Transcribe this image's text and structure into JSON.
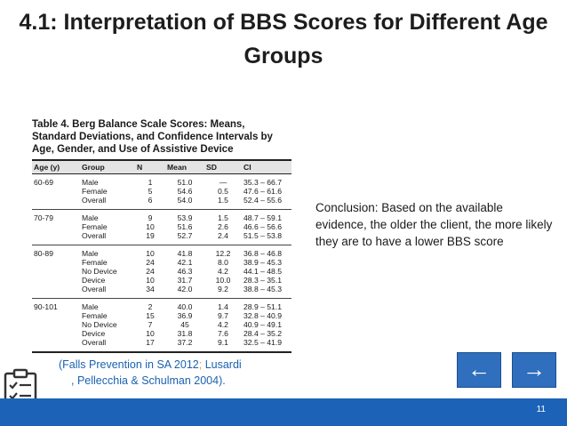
{
  "slide": {
    "title": "4.1: Interpretation of BBS Scores for Different Age Groups",
    "page_number": "11"
  },
  "table": {
    "caption": "Table 4. Berg Balance Scale Scores: Means, Standard Deviations, and Confidence Intervals by Age, Gender, and Use of Assistive Device",
    "headers": [
      "Age (y)",
      "Group",
      "N",
      "Mean",
      "SD",
      "CI"
    ],
    "rows": [
      [
        "60-69",
        "Male",
        "1",
        "51.0",
        "—",
        "35.3 – 66.7"
      ],
      [
        "",
        "Female",
        "5",
        "54.6",
        "0.5",
        "47.6 – 61.6"
      ],
      [
        "",
        "Overall",
        "6",
        "54.0",
        "1.5",
        "52.4 – 55.6"
      ],
      [
        "70-79",
        "Male",
        "9",
        "53.9",
        "1.5",
        "48.7 – 59.1"
      ],
      [
        "",
        "Female",
        "10",
        "51.6",
        "2.6",
        "46.6 – 56.6"
      ],
      [
        "",
        "Overall",
        "19",
        "52.7",
        "2.4",
        "51.5 – 53.8"
      ],
      [
        "80-89",
        "Male",
        "10",
        "41.8",
        "12.2",
        "36.8 – 46.8"
      ],
      [
        "",
        "Female",
        "24",
        "42.1",
        "8.0",
        "38.9 – 45.3"
      ],
      [
        "",
        "No Device",
        "24",
        "46.3",
        "4.2",
        "44.1 – 48.5"
      ],
      [
        "",
        "Device",
        "10",
        "31.7",
        "10.0",
        "28.3 – 35.1"
      ],
      [
        "",
        "Overall",
        "34",
        "42.0",
        "9.2",
        "38.8 – 45.3"
      ],
      [
        "90-101",
        "Male",
        "2",
        "40.0",
        "1.4",
        "28.9 – 51.1"
      ],
      [
        "",
        "Female",
        "15",
        "36.9",
        "9.7",
        "32.8 – 40.9"
      ],
      [
        "",
        "No Device",
        "7",
        "45",
        "4.2",
        "40.9 – 49.1"
      ],
      [
        "",
        "Device",
        "10",
        "31.8",
        "7.6",
        "28.4 – 35.2"
      ],
      [
        "",
        "Overall",
        "17",
        "37.2",
        "9.1",
        "32.5 – 41.9"
      ]
    ]
  },
  "conclusion": "Conclusion: Based on the available evidence, the older the client, the more likely they are to have a lower BBS score",
  "citation": {
    "part1": "(Falls Prevention in SA 2012",
    "separator": ";",
    "part2": " Lusardi",
    "line2": ", Pellecchia & Schulman 2004)."
  },
  "nav": {
    "prev": "←",
    "next": "→"
  },
  "icons": {
    "checklist": "checklist-icon",
    "prev": "arrow-left-icon",
    "next": "arrow-right-icon"
  },
  "colors": {
    "bottom_bar": "#1c63b7",
    "nav_button": "#2f6fbd",
    "citation_text": "#1b62b0",
    "citation_separator": "#e0a020"
  }
}
